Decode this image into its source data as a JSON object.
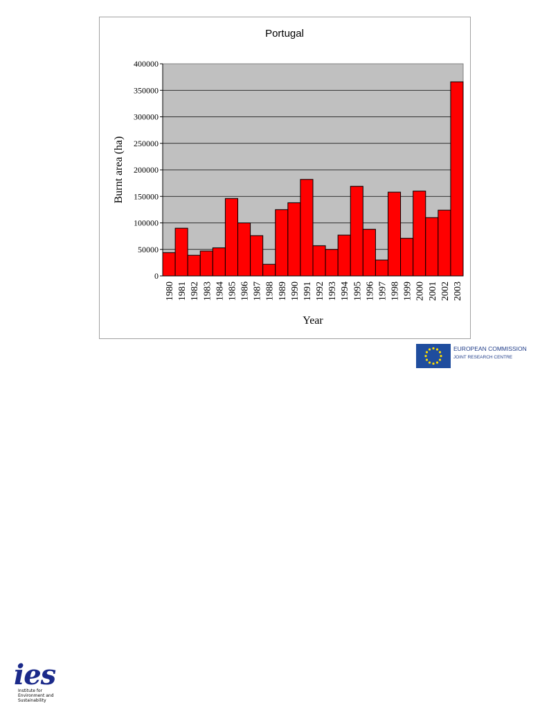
{
  "chart_data": {
    "type": "bar",
    "title": "Portugal",
    "xlabel": "Year",
    "ylabel": "Burnt area (ha)",
    "ylim": [
      0,
      400000
    ],
    "yticks": [
      0,
      50000,
      100000,
      150000,
      200000,
      250000,
      300000,
      350000,
      400000
    ],
    "ytick_labels": [
      "0",
      "50000",
      "100000",
      "150000",
      "200000",
      "250000",
      "300000",
      "350000",
      "400000"
    ],
    "categories": [
      "1980",
      "1981",
      "1982",
      "1983",
      "1984",
      "1985",
      "1986",
      "1987",
      "1988",
      "1989",
      "1990",
      "1991",
      "1992",
      "1993",
      "1994",
      "1995",
      "1996",
      "1997",
      "1998",
      "1999",
      "2000",
      "2001",
      "2002",
      "2003"
    ],
    "values": [
      44000,
      90000,
      39000,
      47000,
      53000,
      146000,
      100000,
      76000,
      22000,
      125000,
      138000,
      182000,
      57000,
      50000,
      77000,
      169000,
      88000,
      30000,
      158000,
      71000,
      160000,
      110000,
      124000,
      366000
    ],
    "bar_color": "#ff0000",
    "plot_background": "#c0c0c0",
    "grid": true
  },
  "logos": {
    "ies": {
      "text": "ies",
      "caption": [
        "Institute for",
        "Environment and",
        "Sustainability"
      ],
      "color": "#1b2a8a"
    },
    "ec": {
      "line1": "EUROPEAN COMMISSION",
      "line2": "JOINT RESEARCH CENTRE",
      "flag_color": "#1f4d9e",
      "star_color": "#ffdd00"
    }
  }
}
